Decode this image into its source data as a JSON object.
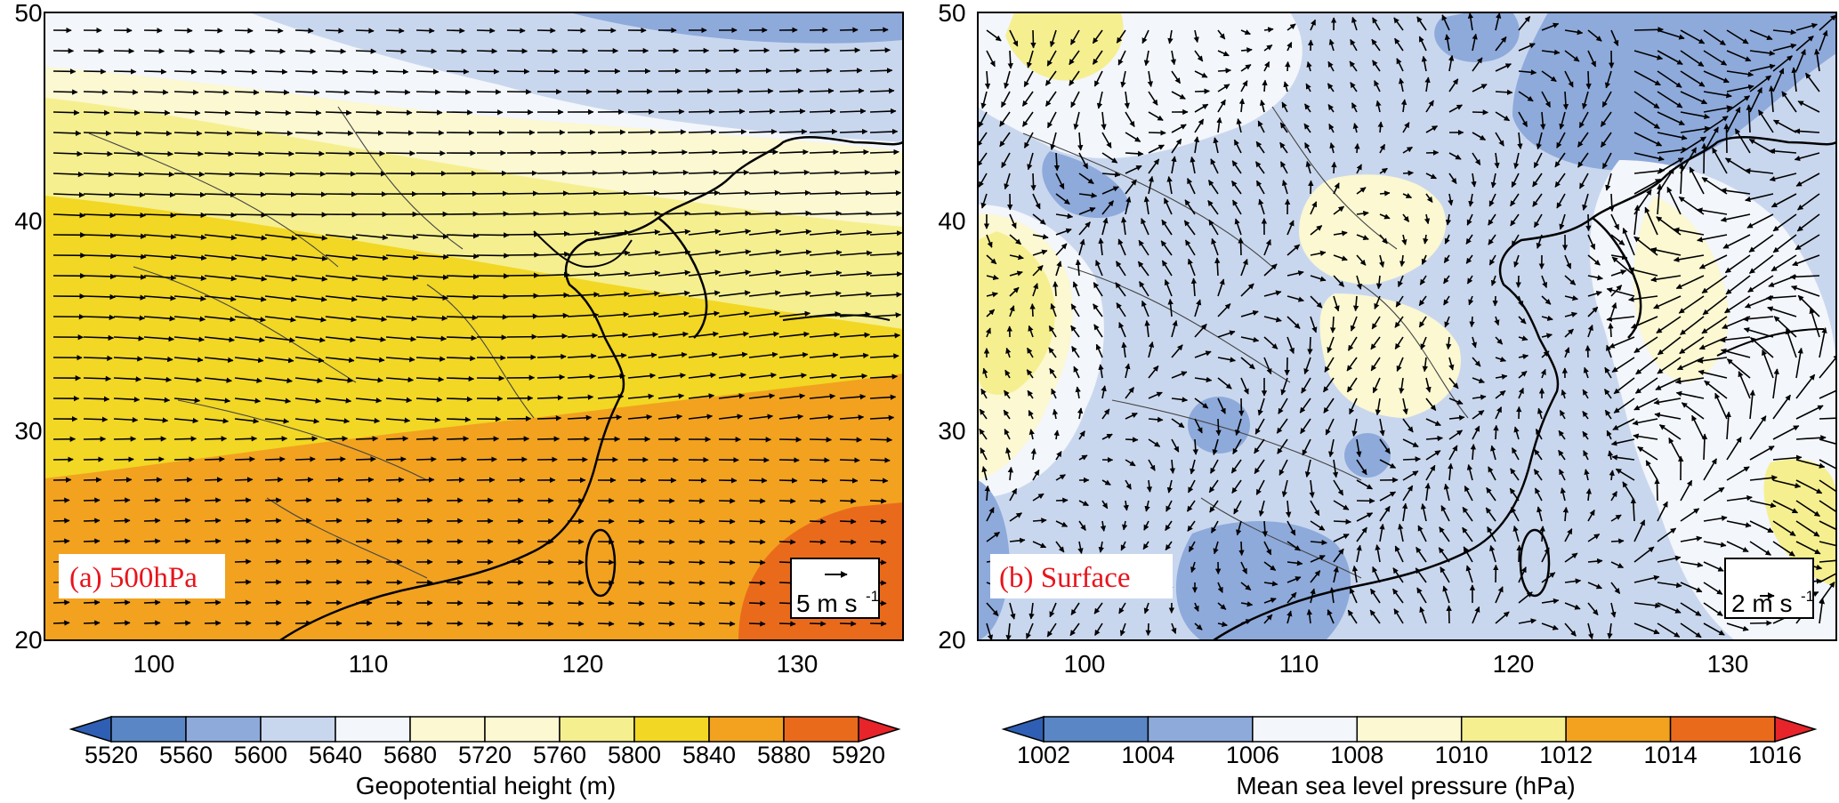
{
  "panels": [
    {
      "id": "a",
      "label": "(a) 500hPa",
      "x_ticks": [
        "100",
        "110",
        "120",
        "130"
      ],
      "y_ticks": [
        "20",
        "30",
        "40",
        "50"
      ],
      "ref_vector_label": "5 m s",
      "ref_vector_sup": "-1",
      "colorbar_levels": [
        "5520",
        "5560",
        "5600",
        "5640",
        "5680",
        "5720",
        "5760",
        "5800",
        "5840",
        "5880",
        "5920"
      ],
      "colorbar_title": "Geopotential height (m)"
    },
    {
      "id": "b",
      "label": "(b) Surface",
      "x_ticks": [
        "100",
        "110",
        "120",
        "130"
      ],
      "y_ticks": [
        "20",
        "30",
        "40",
        "50"
      ],
      "ref_vector_label": "2 m s",
      "ref_vector_sup": "-1",
      "colorbar_levels": [
        "1002",
        "1004",
        "1006",
        "1008",
        "1010",
        "1012",
        "1014",
        "1016"
      ],
      "colorbar_title": "Mean sea level pressure (hPa)"
    }
  ],
  "map_extent": {
    "lon": [
      95,
      135
    ],
    "lat": [
      20,
      50
    ]
  },
  "colors": {
    "scale": [
      "#2f5fb4",
      "#5a86c6",
      "#8eaadb",
      "#c9d7ee",
      "#f3f6fb",
      "#fbf8d2",
      "#f5ef90",
      "#f2d724",
      "#f2a21f",
      "#ea6a1c",
      "#e6242a"
    ]
  }
}
